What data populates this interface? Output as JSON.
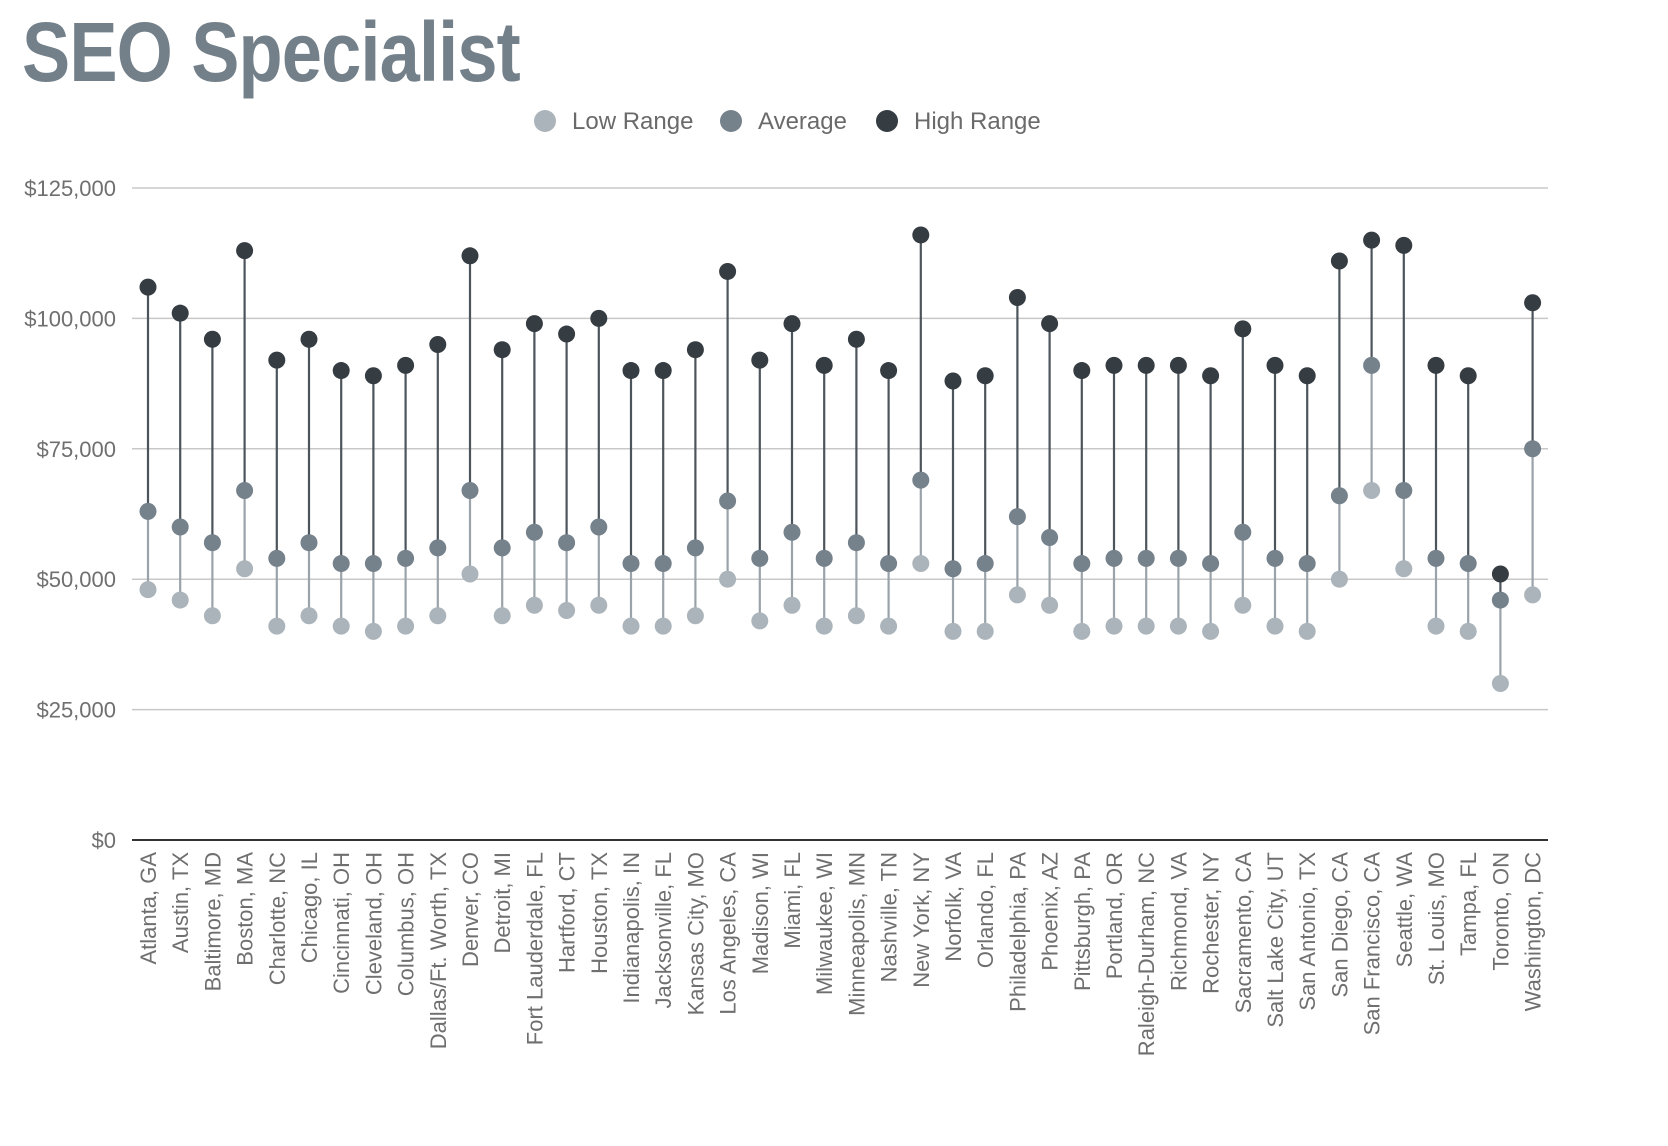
{
  "title": "SEO Specialist",
  "colors": {
    "low": "#abb4ba",
    "average": "#75818b",
    "high": "#353c42",
    "grid": "#c8c8c8",
    "axis": "#333333",
    "title": "#73808a"
  },
  "chart_data": {
    "type": "dumbbell",
    "title": "SEO Specialist",
    "xlabel": "",
    "ylabel": "",
    "ylim": [
      0,
      125000
    ],
    "y_ticks": [
      {
        "value": 0,
        "label": "$0"
      },
      {
        "value": 25000,
        "label": "$25,000"
      },
      {
        "value": 50000,
        "label": "$50,000"
      },
      {
        "value": 75000,
        "label": "$75,000"
      },
      {
        "value": 100000,
        "label": "$100,000"
      },
      {
        "value": 125000,
        "label": "$125,000"
      }
    ],
    "grid": true,
    "legend_position": "top-center",
    "categories": [
      "Atlanta, GA",
      "Austin, TX",
      "Baltimore, MD",
      "Boston, MA",
      "Charlotte, NC",
      "Chicago, IL",
      "Cincinnati, OH",
      "Cleveland, OH",
      "Columbus, OH",
      "Dallas/Ft. Worth, TX",
      "Denver, CO",
      "Detroit, MI",
      "Fort Lauderdale, FL",
      "Hartford, CT",
      "Houston, TX",
      "Indianapolis, IN",
      "Jacksonville, FL",
      "Kansas City, MO",
      "Los Angeles, CA",
      "Madison, WI",
      "Miami, FL",
      "Milwaukee, WI",
      "Minneapolis, MN",
      "Nashville, TN",
      "New York, NY",
      "Norfolk, VA",
      "Orlando, FL",
      "Philadelphia, PA",
      "Phoenix, AZ",
      "Pittsburgh, PA",
      "Portland, OR",
      "Raleigh-Durham, NC",
      "Richmond, VA",
      "Rochester, NY",
      "Sacramento, CA",
      "Salt Lake City, UT",
      "San Antonio, TX",
      "San Diego, CA",
      "San Francisco, CA",
      "Seattle, WA",
      "St. Louis, MO",
      "Tampa, FL",
      "Toronto, ON",
      "Washington, DC"
    ],
    "series": [
      {
        "name": "Low Range",
        "color": "#abb4ba",
        "values": [
          48000,
          46000,
          43000,
          52000,
          41000,
          43000,
          41000,
          40000,
          41000,
          43000,
          51000,
          43000,
          45000,
          44000,
          45000,
          41000,
          41000,
          43000,
          50000,
          42000,
          45000,
          41000,
          43000,
          41000,
          53000,
          40000,
          40000,
          47000,
          45000,
          40000,
          41000,
          41000,
          41000,
          40000,
          45000,
          41000,
          40000,
          50000,
          67000,
          52000,
          41000,
          40000,
          30000,
          47000
        ]
      },
      {
        "name": "Average",
        "color": "#75818b",
        "values": [
          63000,
          60000,
          57000,
          67000,
          54000,
          57000,
          53000,
          53000,
          54000,
          56000,
          67000,
          56000,
          59000,
          57000,
          60000,
          53000,
          53000,
          56000,
          65000,
          54000,
          59000,
          54000,
          57000,
          53000,
          69000,
          52000,
          53000,
          62000,
          58000,
          53000,
          54000,
          54000,
          54000,
          53000,
          59000,
          54000,
          53000,
          66000,
          91000,
          67000,
          54000,
          53000,
          46000,
          75000
        ]
      },
      {
        "name": "High Range",
        "color": "#353c42",
        "values": [
          106000,
          101000,
          96000,
          113000,
          92000,
          96000,
          90000,
          89000,
          91000,
          95000,
          112000,
          94000,
          99000,
          97000,
          100000,
          90000,
          90000,
          94000,
          109000,
          92000,
          99000,
          91000,
          96000,
          90000,
          116000,
          88000,
          89000,
          104000,
          99000,
          90000,
          91000,
          91000,
          91000,
          89000,
          98000,
          91000,
          89000,
          111000,
          115000,
          114000,
          91000,
          89000,
          51000,
          103000
        ]
      }
    ]
  }
}
